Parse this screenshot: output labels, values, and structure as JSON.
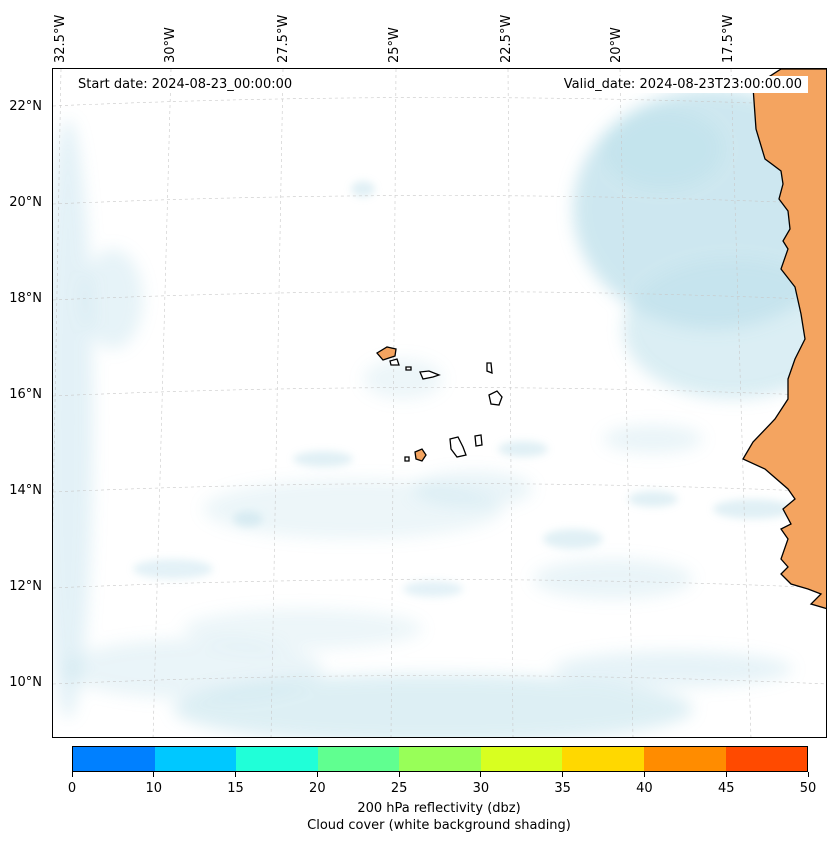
{
  "map": {
    "start_date": "Start date: 2024-08-23_00:00:00",
    "valid_date": "Valid_date: 2024-08-23T23:00:00.00",
    "latitude_labels": [
      "22°N",
      "20°N",
      "18°N",
      "16°N",
      "14°N",
      "12°N",
      "10°N"
    ],
    "longitude_labels": [
      "32.5°W",
      "30°W",
      "27.5°W",
      "25°W",
      "22.5°W",
      "20°W",
      "17.5°W"
    ],
    "cloud_color": "#add8e6",
    "land_color": "#f4a460",
    "coastline_color": "#000000",
    "gridline_color": "#c8c8c8"
  },
  "colorbar": {
    "tick_labels": [
      "0",
      "10",
      "15",
      "20",
      "25",
      "30",
      "35",
      "40",
      "45",
      "50"
    ],
    "colors": [
      "#0080ff",
      "#00c8ff",
      "#20ffd8",
      "#60ff90",
      "#98ff58",
      "#d8ff20",
      "#ffd800",
      "#ff8c00",
      "#ff4a00"
    ],
    "label_line1": "200 hPa reflectivity (dbz)",
    "label_line2": "Cloud cover (white background shading)"
  }
}
